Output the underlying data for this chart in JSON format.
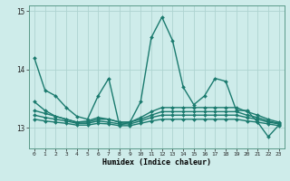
{
  "xlabel": "Humidex (Indice chaleur)",
  "bg_color": "#ceecea",
  "grid_color": "#aed4d0",
  "line_color": "#1a7a6e",
  "xlim": [
    -0.5,
    23.5
  ],
  "ylim": [
    12.65,
    15.1
  ],
  "yticks": [
    13,
    14,
    15
  ],
  "xticks": [
    0,
    1,
    2,
    3,
    4,
    5,
    6,
    7,
    8,
    9,
    10,
    11,
    12,
    13,
    14,
    15,
    16,
    17,
    18,
    19,
    20,
    21,
    22,
    23
  ],
  "series": [
    [
      14.2,
      13.65,
      13.55,
      13.35,
      13.2,
      13.15,
      13.55,
      13.85,
      13.05,
      13.1,
      13.45,
      14.55,
      14.9,
      14.5,
      13.7,
      13.4,
      13.55,
      13.85,
      13.8,
      13.3,
      13.3,
      13.1,
      12.85,
      13.05
    ],
    [
      13.45,
      13.3,
      13.2,
      13.15,
      13.1,
      13.12,
      13.18,
      13.15,
      13.1,
      13.1,
      13.18,
      13.28,
      13.35,
      13.35,
      13.35,
      13.35,
      13.35,
      13.35,
      13.35,
      13.35,
      13.28,
      13.22,
      13.15,
      13.1
    ],
    [
      13.3,
      13.25,
      13.2,
      13.15,
      13.1,
      13.1,
      13.15,
      13.15,
      13.1,
      13.1,
      13.15,
      13.22,
      13.28,
      13.28,
      13.28,
      13.28,
      13.28,
      13.28,
      13.28,
      13.28,
      13.22,
      13.18,
      13.12,
      13.08
    ],
    [
      13.22,
      13.18,
      13.15,
      13.12,
      13.08,
      13.08,
      13.12,
      13.1,
      13.07,
      13.07,
      13.12,
      13.18,
      13.22,
      13.22,
      13.22,
      13.22,
      13.22,
      13.22,
      13.22,
      13.22,
      13.18,
      13.15,
      13.1,
      13.07
    ],
    [
      13.15,
      13.12,
      13.1,
      13.08,
      13.05,
      13.05,
      13.08,
      13.07,
      13.04,
      13.04,
      13.08,
      13.12,
      13.15,
      13.15,
      13.15,
      13.15,
      13.15,
      13.15,
      13.15,
      13.15,
      13.12,
      13.1,
      13.07,
      13.04
    ]
  ]
}
